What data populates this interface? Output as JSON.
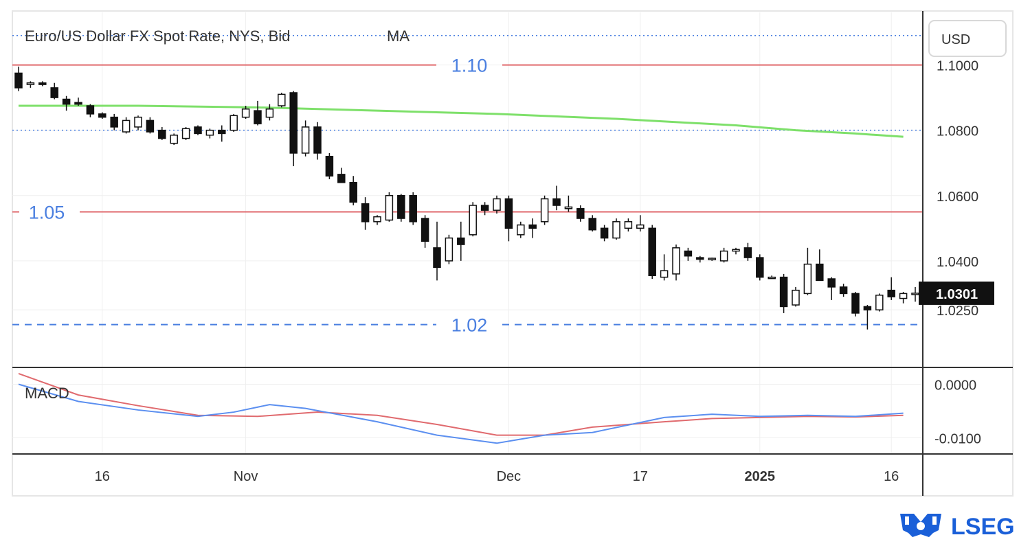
{
  "chart_data": {
    "type": "candlestick",
    "title": "Euro/US Dollar FX Spot Rate, NYS, Bid",
    "indicator_label": "MA",
    "currency_label": "USD",
    "last_price": "1.0301",
    "y_ticks": [
      "1.1000",
      "1.0800",
      "1.0600",
      "1.0400",
      "1.0250"
    ],
    "y_tick_values": [
      1.1,
      1.08,
      1.06,
      1.04,
      1.025
    ],
    "ylim": [
      1.008,
      1.114
    ],
    "x_ticks": [
      {
        "label": "16",
        "bar": 7
      },
      {
        "label": "Nov",
        "bar": 19
      },
      {
        "label": "Dec",
        "bar": 41
      },
      {
        "label": "17",
        "bar": 52
      },
      {
        "label": "2025",
        "bar": 62
      },
      {
        "label": "16",
        "bar": 73
      }
    ],
    "levels": [
      {
        "label": "1.10",
        "value": 1.1,
        "style": "solid",
        "color": "#e06a6e"
      },
      {
        "label": "1.05",
        "value": 1.055,
        "style": "solid",
        "color": "#e06a6e"
      },
      {
        "label": "1.02",
        "value": 1.0205,
        "style": "dashed",
        "color": "#4a7fe0"
      }
    ],
    "dotted_lines": [
      1.109,
      1.08
    ],
    "moving_average": {
      "color": "#7ee06a",
      "points": [
        [
          0,
          1.0875
        ],
        [
          10,
          1.0875
        ],
        [
          20,
          1.087
        ],
        [
          30,
          1.086
        ],
        [
          40,
          1.085
        ],
        [
          50,
          1.0835
        ],
        [
          60,
          1.0815
        ],
        [
          65,
          1.08
        ],
        [
          70,
          1.079
        ],
        [
          74,
          1.078
        ]
      ]
    },
    "candles": [
      [
        1.0975,
        1.0995,
        1.092,
        1.093
      ],
      [
        1.094,
        1.095,
        1.093,
        1.0945
      ],
      [
        1.0945,
        1.095,
        1.0935,
        1.094
      ],
      [
        1.093,
        1.0945,
        1.0895,
        1.09
      ],
      [
        1.0895,
        1.0905,
        1.086,
        1.088
      ],
      [
        1.0885,
        1.09,
        1.0875,
        1.088
      ],
      [
        1.0875,
        1.088,
        1.084,
        1.085
      ],
      [
        1.085,
        1.0855,
        1.0835,
        1.084
      ],
      [
        1.084,
        1.085,
        1.08,
        1.081
      ],
      [
        1.0795,
        1.084,
        1.079,
        1.083
      ],
      [
        1.081,
        1.0845,
        1.08,
        1.084
      ],
      [
        1.083,
        1.084,
        1.079,
        1.0795
      ],
      [
        1.08,
        1.081,
        1.077,
        1.0775
      ],
      [
        1.076,
        1.079,
        1.0755,
        1.0785
      ],
      [
        1.0775,
        1.081,
        1.077,
        1.0805
      ],
      [
        1.081,
        1.0815,
        1.0785,
        1.079
      ],
      [
        1.0785,
        1.0805,
        1.0775,
        1.08
      ],
      [
        1.08,
        1.0815,
        1.0765,
        1.079
      ],
      [
        1.08,
        1.085,
        1.0795,
        1.0845
      ],
      [
        1.084,
        1.0875,
        1.0835,
        1.0865
      ],
      [
        1.086,
        1.089,
        1.0815,
        1.082
      ],
      [
        1.084,
        1.088,
        1.083,
        1.0865
      ],
      [
        1.0875,
        1.0915,
        1.087,
        1.091
      ],
      [
        1.0915,
        1.092,
        1.069,
        1.073
      ],
      [
        1.073,
        1.083,
        1.072,
        1.081
      ],
      [
        1.081,
        1.0825,
        1.071,
        1.073
      ],
      [
        1.072,
        1.073,
        1.065,
        1.066
      ],
      [
        1.0665,
        1.0685,
        1.064,
        1.064
      ],
      [
        1.064,
        1.066,
        1.057,
        1.058
      ],
      [
        1.0575,
        1.0595,
        1.0495,
        1.052
      ],
      [
        1.052,
        1.054,
        1.051,
        1.0535
      ],
      [
        1.0525,
        1.061,
        1.052,
        1.06
      ],
      [
        1.06,
        1.0605,
        1.052,
        1.053
      ],
      [
        1.06,
        1.061,
        1.051,
        1.052
      ],
      [
        1.053,
        1.054,
        1.044,
        1.046
      ],
      [
        1.044,
        1.052,
        1.034,
        1.038
      ],
      [
        1.04,
        1.048,
        1.039,
        1.047
      ],
      [
        1.047,
        1.052,
        1.04,
        1.045
      ],
      [
        1.048,
        1.058,
        1.0475,
        1.057
      ],
      [
        1.057,
        1.058,
        1.054,
        1.0555
      ],
      [
        1.0555,
        1.06,
        1.0545,
        1.059
      ],
      [
        1.059,
        1.06,
        1.046,
        1.05
      ],
      [
        1.048,
        1.052,
        1.047,
        1.051
      ],
      [
        1.051,
        1.053,
        1.047,
        1.05
      ],
      [
        1.052,
        1.06,
        1.051,
        1.059
      ],
      [
        1.059,
        1.063,
        1.0555,
        1.057
      ],
      [
        1.056,
        1.06,
        1.055,
        1.0565
      ],
      [
        1.056,
        1.057,
        1.052,
        1.053
      ],
      [
        1.053,
        1.054,
        1.049,
        1.0495
      ],
      [
        1.05,
        1.051,
        1.046,
        1.047
      ],
      [
        1.047,
        1.053,
        1.0465,
        1.052
      ],
      [
        1.05,
        1.053,
        1.049,
        1.052
      ],
      [
        1.05,
        1.054,
        1.049,
        1.051
      ],
      [
        1.05,
        1.051,
        1.0345,
        1.0355
      ],
      [
        1.035,
        1.042,
        1.034,
        1.037
      ],
      [
        1.036,
        1.045,
        1.034,
        1.044
      ],
      [
        1.043,
        1.044,
        1.04,
        1.0415
      ],
      [
        1.041,
        1.0415,
        1.0395,
        1.0405
      ],
      [
        1.0405,
        1.041,
        1.04,
        1.0408
      ],
      [
        1.04,
        1.044,
        1.0395,
        1.043
      ],
      [
        1.043,
        1.044,
        1.042,
        1.0435
      ],
      [
        1.044,
        1.0455,
        1.04,
        1.041
      ],
      [
        1.041,
        1.042,
        1.034,
        1.035
      ],
      [
        1.035,
        1.0355,
        1.0345,
        1.035
      ],
      [
        1.035,
        1.036,
        1.024,
        1.026
      ],
      [
        1.0265,
        1.032,
        1.026,
        1.031
      ],
      [
        1.03,
        1.044,
        1.0295,
        1.039
      ],
      [
        1.039,
        1.0435,
        1.034,
        1.034
      ],
      [
        1.0345,
        1.035,
        1.028,
        1.032
      ],
      [
        1.032,
        1.033,
        1.029,
        1.03
      ],
      [
        1.03,
        1.0305,
        1.023,
        1.024
      ],
      [
        1.026,
        1.0265,
        1.019,
        1.025
      ],
      [
        1.025,
        1.03,
        1.0245,
        1.0295
      ],
      [
        1.031,
        1.035,
        1.028,
        1.029
      ],
      [
        1.0285,
        1.0305,
        1.027,
        1.03
      ],
      [
        1.03,
        1.032,
        1.0275,
        1.0301
      ]
    ],
    "macd": {
      "label": "MACD",
      "y_ticks": [
        "0.0000",
        "-0.0100"
      ],
      "y_tick_values": [
        0.0,
        -0.01
      ],
      "ylim": [
        -0.0125,
        0.0025
      ],
      "macd_line": {
        "color": "#5b8ff0",
        "points": [
          [
            0,
            0.0
          ],
          [
            5,
            -0.0032
          ],
          [
            10,
            -0.0048
          ],
          [
            15,
            -0.006
          ],
          [
            18,
            -0.0052
          ],
          [
            21,
            -0.0038
          ],
          [
            24,
            -0.0045
          ],
          [
            30,
            -0.007
          ],
          [
            35,
            -0.0095
          ],
          [
            40,
            -0.011
          ],
          [
            44,
            -0.0095
          ],
          [
            48,
            -0.009
          ],
          [
            54,
            -0.0062
          ],
          [
            58,
            -0.0056
          ],
          [
            62,
            -0.006
          ],
          [
            66,
            -0.0058
          ],
          [
            70,
            -0.006
          ],
          [
            74,
            -0.0054
          ]
        ]
      },
      "signal_line": {
        "color": "#e06a6e",
        "points": [
          [
            0,
            0.002
          ],
          [
            5,
            -0.002
          ],
          [
            10,
            -0.004
          ],
          [
            15,
            -0.0058
          ],
          [
            20,
            -0.006
          ],
          [
            25,
            -0.0052
          ],
          [
            30,
            -0.0058
          ],
          [
            35,
            -0.0075
          ],
          [
            40,
            -0.0095
          ],
          [
            44,
            -0.0095
          ],
          [
            48,
            -0.008
          ],
          [
            54,
            -0.007
          ],
          [
            58,
            -0.0064
          ],
          [
            62,
            -0.0062
          ],
          [
            66,
            -0.006
          ],
          [
            70,
            -0.0061
          ],
          [
            74,
            -0.0058
          ]
        ]
      }
    }
  },
  "branding": {
    "logo_text": "LSEG",
    "logo_icon": "crest-icon",
    "logo_color": "#1a5fd8"
  }
}
